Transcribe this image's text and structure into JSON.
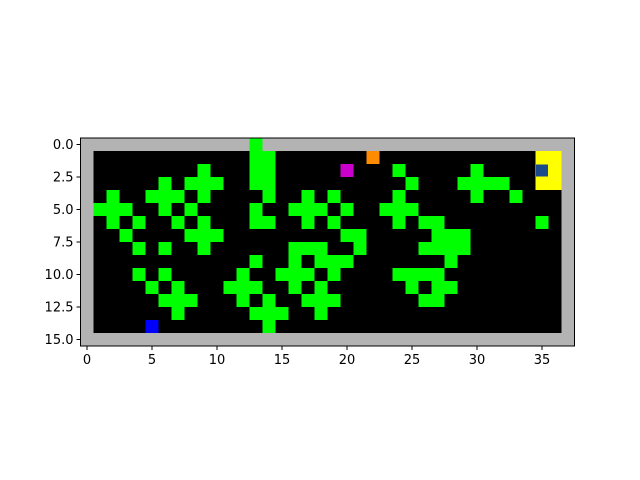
{
  "grid": {
    "cols": 38,
    "rows": 16,
    "colors": {
      "wall": "#b3b3b3",
      "floor": "#000000",
      "plant": "#00ff00",
      "goal": "#ffff00",
      "agent": "#1a4a8a",
      "player_blue": "#0000ff",
      "magenta": "#cc00cc",
      "orange": "#ff8c00"
    },
    "plants": [
      [
        13,
        0
      ],
      [
        13,
        1
      ],
      [
        14,
        1
      ],
      [
        9,
        2
      ],
      [
        13,
        2
      ],
      [
        14,
        2
      ],
      [
        24,
        2
      ],
      [
        30,
        2
      ],
      [
        6,
        3
      ],
      [
        8,
        3
      ],
      [
        9,
        3
      ],
      [
        10,
        3
      ],
      [
        13,
        3
      ],
      [
        14,
        3
      ],
      [
        25,
        3
      ],
      [
        29,
        3
      ],
      [
        30,
        3
      ],
      [
        31,
        3
      ],
      [
        32,
        3
      ],
      [
        2,
        4
      ],
      [
        5,
        4
      ],
      [
        6,
        4
      ],
      [
        7,
        4
      ],
      [
        9,
        4
      ],
      [
        14,
        4
      ],
      [
        17,
        4
      ],
      [
        19,
        4
      ],
      [
        24,
        4
      ],
      [
        30,
        4
      ],
      [
        33,
        4
      ],
      [
        1,
        5
      ],
      [
        2,
        5
      ],
      [
        3,
        5
      ],
      [
        6,
        5
      ],
      [
        8,
        5
      ],
      [
        13,
        5
      ],
      [
        16,
        5
      ],
      [
        17,
        5
      ],
      [
        18,
        5
      ],
      [
        20,
        5
      ],
      [
        23,
        5
      ],
      [
        24,
        5
      ],
      [
        25,
        5
      ],
      [
        2,
        6
      ],
      [
        4,
        6
      ],
      [
        7,
        6
      ],
      [
        9,
        6
      ],
      [
        13,
        6
      ],
      [
        14,
        6
      ],
      [
        17,
        6
      ],
      [
        19,
        6
      ],
      [
        24,
        6
      ],
      [
        26,
        6
      ],
      [
        27,
        6
      ],
      [
        35,
        6
      ],
      [
        3,
        7
      ],
      [
        8,
        7
      ],
      [
        9,
        7
      ],
      [
        10,
        7
      ],
      [
        20,
        7
      ],
      [
        21,
        7
      ],
      [
        27,
        7
      ],
      [
        28,
        7
      ],
      [
        29,
        7
      ],
      [
        4,
        8
      ],
      [
        6,
        8
      ],
      [
        9,
        8
      ],
      [
        16,
        8
      ],
      [
        17,
        8
      ],
      [
        18,
        8
      ],
      [
        21,
        8
      ],
      [
        26,
        8
      ],
      [
        27,
        8
      ],
      [
        28,
        8
      ],
      [
        29,
        8
      ],
      [
        13,
        9
      ],
      [
        16,
        9
      ],
      [
        18,
        9
      ],
      [
        19,
        9
      ],
      [
        20,
        9
      ],
      [
        28,
        9
      ],
      [
        4,
        10
      ],
      [
        6,
        10
      ],
      [
        12,
        10
      ],
      [
        15,
        10
      ],
      [
        16,
        10
      ],
      [
        17,
        10
      ],
      [
        19,
        10
      ],
      [
        24,
        10
      ],
      [
        25,
        10
      ],
      [
        26,
        10
      ],
      [
        27,
        10
      ],
      [
        5,
        11
      ],
      [
        7,
        11
      ],
      [
        11,
        11
      ],
      [
        12,
        11
      ],
      [
        13,
        11
      ],
      [
        16,
        11
      ],
      [
        18,
        11
      ],
      [
        25,
        11
      ],
      [
        27,
        11
      ],
      [
        28,
        11
      ],
      [
        6,
        12
      ],
      [
        7,
        12
      ],
      [
        8,
        12
      ],
      [
        12,
        12
      ],
      [
        14,
        12
      ],
      [
        17,
        12
      ],
      [
        18,
        12
      ],
      [
        19,
        12
      ],
      [
        26,
        12
      ],
      [
        27,
        12
      ],
      [
        7,
        13
      ],
      [
        13,
        13
      ],
      [
        14,
        13
      ],
      [
        15,
        13
      ],
      [
        18,
        13
      ],
      [
        14,
        14
      ]
    ],
    "goal": [
      [
        35,
        1
      ],
      [
        36,
        1
      ],
      [
        35,
        2
      ],
      [
        36,
        2
      ],
      [
        35,
        3
      ],
      [
        36,
        3
      ]
    ],
    "agent": [
      35,
      2
    ],
    "player_blue": [
      5,
      14
    ],
    "magenta": [
      20,
      2
    ],
    "orange": [
      22,
      1
    ]
  },
  "axes": {
    "x_ticks": [
      "0",
      "5",
      "10",
      "15",
      "20",
      "25",
      "30",
      "35"
    ],
    "x_tick_values": [
      0,
      5,
      10,
      15,
      20,
      25,
      30,
      35
    ],
    "y_ticks": [
      "0.0",
      "2.5",
      "5.0",
      "7.5",
      "10.0",
      "12.5",
      "15.0"
    ],
    "y_tick_values": [
      0,
      2.5,
      5,
      7.5,
      10,
      12.5,
      15
    ]
  }
}
